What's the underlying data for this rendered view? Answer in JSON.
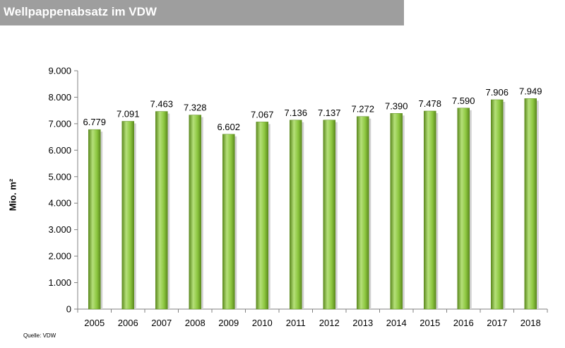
{
  "header": {
    "title": "Wellpappenabsatz im VDW"
  },
  "source": "Quelle: VDW",
  "colors": {
    "bar": "#8cc63f",
    "bar_edge": "#5c8a1e",
    "bar_highlight": "#b5e07a",
    "title_bg": "#9e9e9e"
  },
  "chart_data": {
    "type": "bar",
    "title": "Wellpappenabsatz im VDW",
    "xlabel": "",
    "ylabel": "Mio. m²",
    "ylim": [
      0,
      9000
    ],
    "yticks": [
      0,
      1000,
      2000,
      3000,
      4000,
      5000,
      6000,
      7000,
      8000,
      9000
    ],
    "ytick_labels": [
      "0",
      "1.000",
      "2.000",
      "3.000",
      "4.000",
      "5.000",
      "6.000",
      "7.000",
      "8.000",
      "9.000"
    ],
    "categories": [
      "2005",
      "2006",
      "2007",
      "2008",
      "2009",
      "2010",
      "2011",
      "2012",
      "2013",
      "2014",
      "2015",
      "2016",
      "2017",
      "2018"
    ],
    "values": [
      6779,
      7091,
      7463,
      7328,
      6602,
      7067,
      7136,
      7137,
      7272,
      7390,
      7478,
      7590,
      7906,
      7949
    ],
    "value_labels": [
      "6.779",
      "7.091",
      "7.463",
      "7.328",
      "6.602",
      "7.067",
      "7.136",
      "7.137",
      "7.272",
      "7.390",
      "7.478",
      "7.590",
      "7.906",
      "7.949"
    ],
    "grid": false,
    "legend": "none"
  }
}
